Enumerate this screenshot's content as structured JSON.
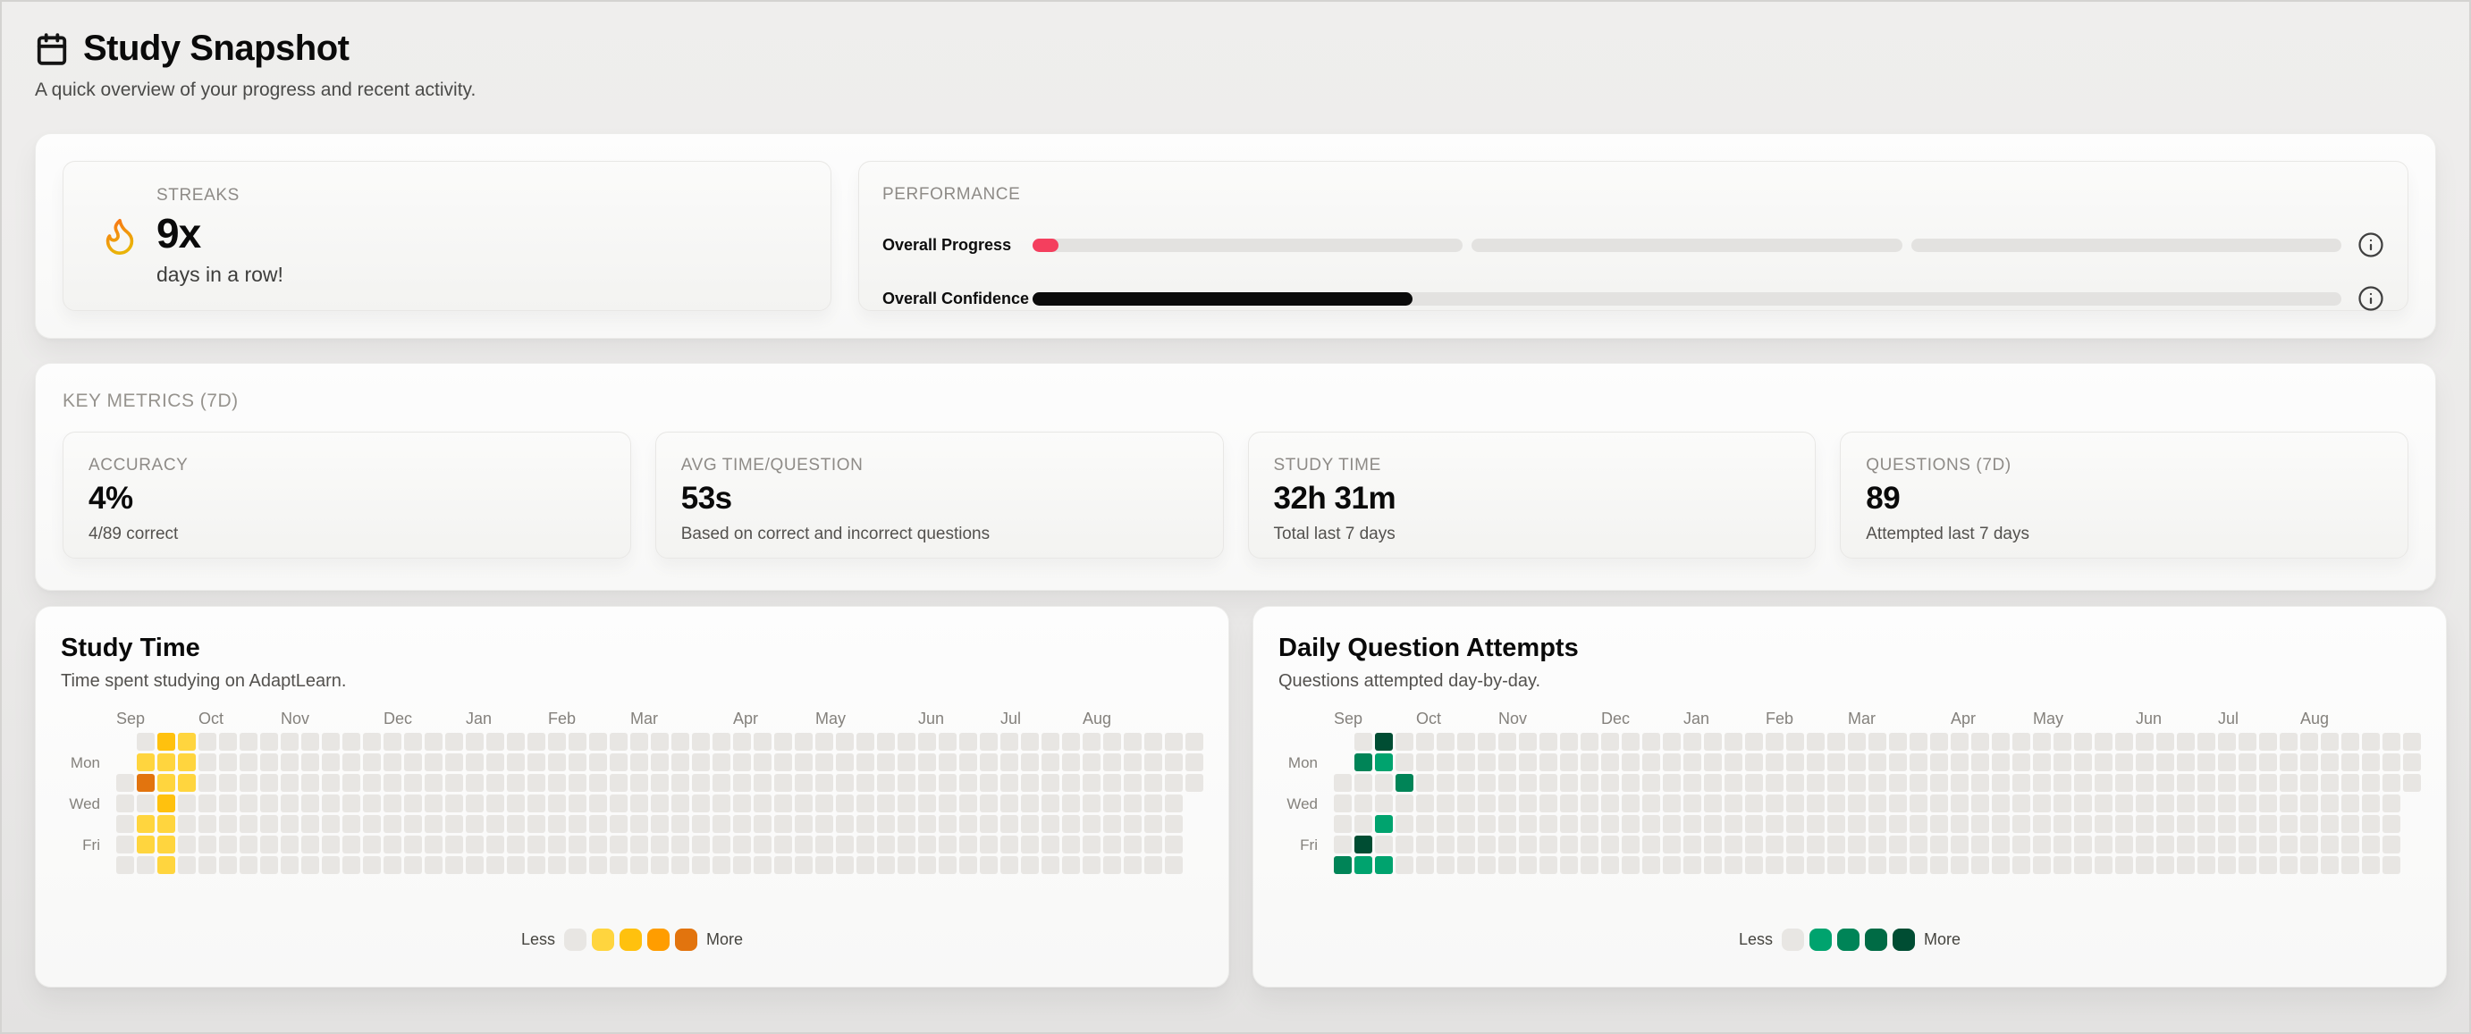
{
  "page": {
    "title": "Study Snapshot",
    "subtitle": "A quick overview of your progress and recent activity."
  },
  "streaks": {
    "label": "STREAKS",
    "value": "9x",
    "caption": "days in a row!"
  },
  "performance": {
    "label": "PERFORMANCE",
    "rows": [
      {
        "label": "Overall Progress",
        "percent": 2,
        "fill_color": "#f43f5e",
        "segments": 3
      },
      {
        "label": "Overall Confidence",
        "percent": 29,
        "fill_color": "#0b0b0b",
        "segments": 1
      }
    ]
  },
  "key_metrics": {
    "label": "KEY METRICS (7D)",
    "cards": [
      {
        "label": "ACCURACY",
        "value": "4%",
        "caption": "4/89 correct"
      },
      {
        "label": "AVG TIME/QUESTION",
        "value": "53s",
        "caption": "Based on correct and incorrect questions"
      },
      {
        "label": "STUDY TIME",
        "value": "32h 31m",
        "caption": "Total last 7 days"
      },
      {
        "label": "QUESTIONS (7D)",
        "value": "89",
        "caption": "Attempted last 7 days"
      }
    ]
  },
  "chart_data": [
    {
      "type": "heatmap",
      "title": "Study Time",
      "subtitle": "Time spent studying on AdaptLearn.",
      "weeks": 53,
      "rows": 7,
      "first_week_start_row": 2,
      "last_week_end_row": 2,
      "empty_color": "#e8e6e3",
      "colors": [
        "#e8e6e3",
        "#ffd53e",
        "#ffc10e",
        "#ff9d00",
        "#e2740e"
      ],
      "month_labels": [
        {
          "label": "Sep",
          "col": 0
        },
        {
          "label": "Oct",
          "col": 4
        },
        {
          "label": "Nov",
          "col": 8
        },
        {
          "label": "Dec",
          "col": 13
        },
        {
          "label": "Jan",
          "col": 17
        },
        {
          "label": "Feb",
          "col": 21
        },
        {
          "label": "Mar",
          "col": 25
        },
        {
          "label": "Apr",
          "col": 30
        },
        {
          "label": "May",
          "col": 34
        },
        {
          "label": "Jun",
          "col": 39
        },
        {
          "label": "Jul",
          "col": 43
        },
        {
          "label": "Aug",
          "col": 47
        }
      ],
      "day_labels": [
        {
          "label": "Mon",
          "row": 1
        },
        {
          "label": "Wed",
          "row": 3
        },
        {
          "label": "Fri",
          "row": 5
        }
      ],
      "cells": [
        {
          "col": 1,
          "row": 1,
          "level": 1
        },
        {
          "col": 1,
          "row": 2,
          "level": 4
        },
        {
          "col": 1,
          "row": 4,
          "level": 1
        },
        {
          "col": 1,
          "row": 5,
          "level": 1
        },
        {
          "col": 2,
          "row": 0,
          "level": 2
        },
        {
          "col": 2,
          "row": 1,
          "level": 1
        },
        {
          "col": 2,
          "row": 2,
          "level": 1
        },
        {
          "col": 2,
          "row": 3,
          "level": 2
        },
        {
          "col": 2,
          "row": 4,
          "level": 1
        },
        {
          "col": 2,
          "row": 5,
          "level": 1
        },
        {
          "col": 2,
          "row": 6,
          "level": 1
        },
        {
          "col": 3,
          "row": 0,
          "level": 1
        },
        {
          "col": 3,
          "row": 1,
          "level": 1
        },
        {
          "col": 3,
          "row": 2,
          "level": 1
        }
      ],
      "legend": {
        "less": "Less",
        "more": "More"
      }
    },
    {
      "type": "heatmap",
      "title": "Daily Question Attempts",
      "subtitle": "Questions attempted day-by-day.",
      "weeks": 53,
      "rows": 7,
      "first_week_start_row": 2,
      "last_week_end_row": 2,
      "empty_color": "#e8e6e3",
      "colors": [
        "#e8e6e3",
        "#00a36e",
        "#008457",
        "#006b45",
        "#004d33"
      ],
      "month_labels": [
        {
          "label": "Sep",
          "col": 0
        },
        {
          "label": "Oct",
          "col": 4
        },
        {
          "label": "Nov",
          "col": 8
        },
        {
          "label": "Dec",
          "col": 13
        },
        {
          "label": "Jan",
          "col": 17
        },
        {
          "label": "Feb",
          "col": 21
        },
        {
          "label": "Mar",
          "col": 25
        },
        {
          "label": "Apr",
          "col": 30
        },
        {
          "label": "May",
          "col": 34
        },
        {
          "label": "Jun",
          "col": 39
        },
        {
          "label": "Jul",
          "col": 43
        },
        {
          "label": "Aug",
          "col": 47
        }
      ],
      "day_labels": [
        {
          "label": "Mon",
          "row": 1
        },
        {
          "label": "Wed",
          "row": 3
        },
        {
          "label": "Fri",
          "row": 5
        }
      ],
      "cells": [
        {
          "col": 2,
          "row": 0,
          "level": 4
        },
        {
          "col": 1,
          "row": 1,
          "level": 2
        },
        {
          "col": 2,
          "row": 1,
          "level": 1
        },
        {
          "col": 3,
          "row": 2,
          "level": 2
        },
        {
          "col": 2,
          "row": 4,
          "level": 1
        },
        {
          "col": 1,
          "row": 5,
          "level": 4
        },
        {
          "col": 0,
          "row": 6,
          "level": 2
        },
        {
          "col": 1,
          "row": 6,
          "level": 1
        },
        {
          "col": 2,
          "row": 6,
          "level": 1
        }
      ],
      "legend": {
        "less": "Less",
        "more": "More"
      }
    }
  ]
}
